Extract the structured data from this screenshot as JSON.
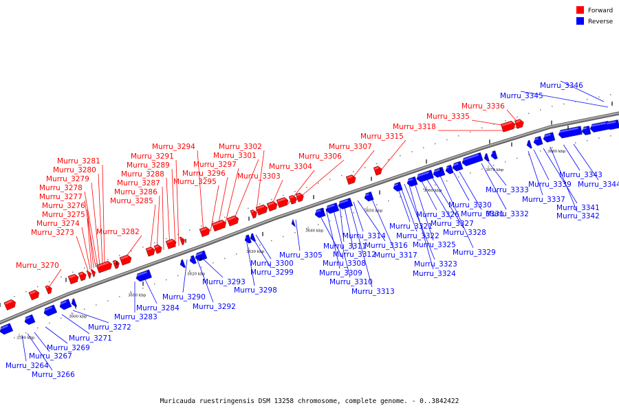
{
  "legend": [
    {
      "label": "Forward",
      "color": "#ff0000"
    },
    {
      "label": "Reverse",
      "color": "#0000ff"
    }
  ],
  "caption": "Muricauda ruestringensis DSM 13258 chromosome, complete genome. - 0..3842422",
  "colors": {
    "forward": "#ff0000",
    "reverse": "#0000ff",
    "backbone": "#888888"
  },
  "ticks": [
    "3590 kbp",
    "3600 kbp",
    "3610 kbp",
    "3620 kbp",
    "3630 kbp",
    "3640 kbp",
    "3650 kbp",
    "3660 kbp",
    "3670 kbp",
    "3680 kbp"
  ],
  "forward_labels": [
    "Murru_3270",
    "Murru_3273",
    "Murru_3274",
    "Murru_3275",
    "Murru_3276",
    "Murru_3277",
    "Murru_3278",
    "Murru_3279",
    "Murru_3280",
    "Murru_3281",
    "Murru_3282",
    "Murru_3285",
    "Murru_3286",
    "Murru_3287",
    "Murru_3288",
    "Murru_3289",
    "Murru_3291",
    "Murru_3294",
    "Murru_3295",
    "Murru_3296",
    "Murru_3297",
    "Murru_3301",
    "Murru_3302",
    "Murru_3303",
    "Murru_3304",
    "Murru_3306",
    "Murru_3307",
    "Murru_3315",
    "Murru_3318",
    "Murru_3335",
    "Murru_3336"
  ],
  "reverse_labels": [
    "Murru_3264",
    "Murru_3266",
    "Murru_3267",
    "Murru_3269",
    "Murru_3271",
    "Murru_3272",
    "Murru_3283",
    "Murru_3284",
    "Murru_3290",
    "Murru_3292",
    "Murru_3293",
    "Murru_3298",
    "Murru_3299",
    "Murru_3300",
    "Murru_3305",
    "Murru_3308",
    "Murru_3309",
    "Murru_3310",
    "Murru_3311",
    "Murru_3312",
    "Murru_3313",
    "Murru_3314",
    "Murru_3316",
    "Murru_3317",
    "Murru_3321",
    "Murru_3322",
    "Murru_3323",
    "Murru_3324",
    "Murru_3325",
    "Murru_3326",
    "Murru_3327",
    "Murru_3328",
    "Murru_3329",
    "Murru_3330",
    "Murru_3331",
    "Murru_3332",
    "Murru_3333",
    "Murru_3337",
    "Murru_3339",
    "Murru_3341",
    "Murru_3342",
    "Murru_3343",
    "Murru_3344",
    "Murru_3345",
    "Murru_3346"
  ]
}
